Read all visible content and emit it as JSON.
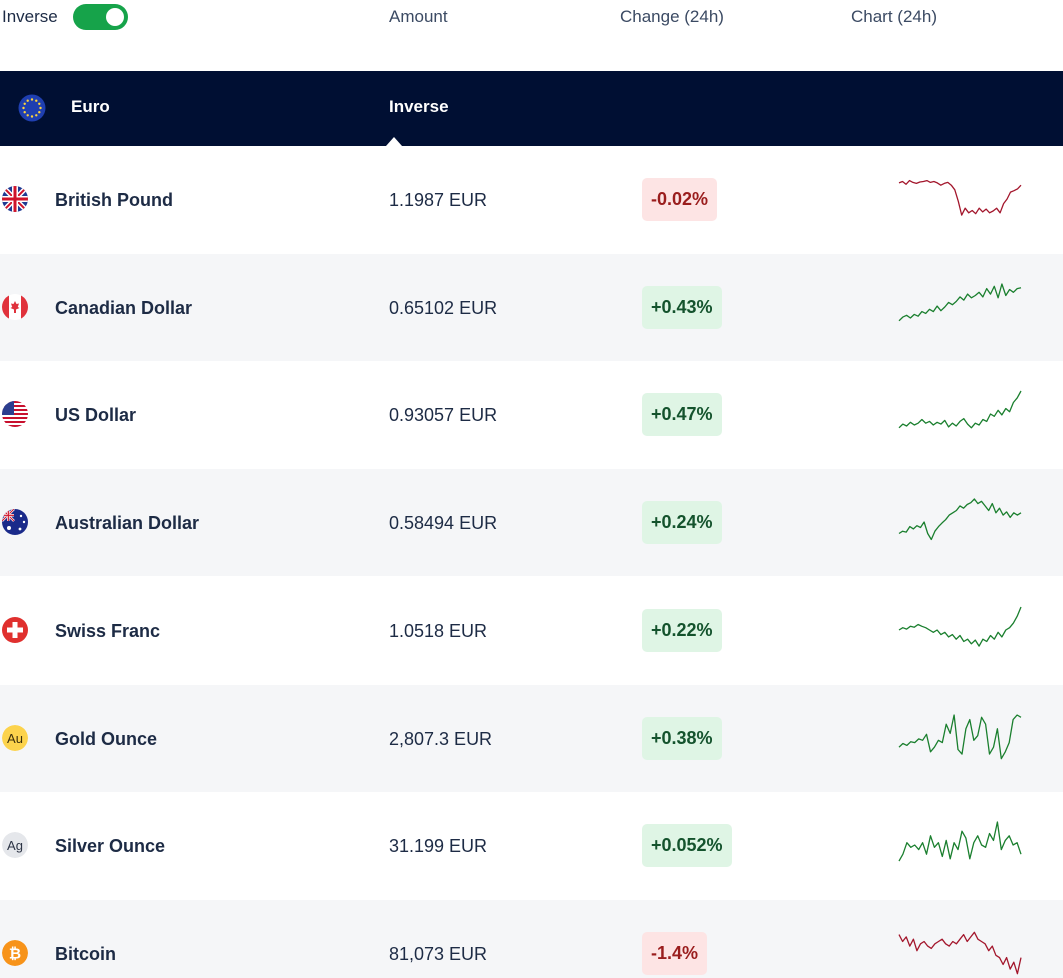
{
  "topbar": {
    "inverse_label": "Inverse",
    "inverse_on": true,
    "columns": {
      "amount": "Amount",
      "change": "Change (24h)",
      "chart": "Chart (24h)"
    }
  },
  "base": {
    "name": "Euro",
    "icon": "eu-flag-icon",
    "tab": "Inverse"
  },
  "colors": {
    "header": "#000f33",
    "toggle": "#16a34a",
    "up": "#1a7f2e",
    "down": "#a3162c"
  },
  "rows": [
    {
      "name": "British Pound",
      "icon": "uk-flag-icon",
      "amount": "1.1987 EUR",
      "change": "-0.02%",
      "direction": "down",
      "spark": [
        0.15,
        0.12,
        0.18,
        0.1,
        0.14,
        0.16,
        0.13,
        0.12,
        0.1,
        0.14,
        0.12,
        0.15,
        0.2,
        0.16,
        0.14,
        0.2,
        0.3,
        0.55,
        0.85,
        0.7,
        0.8,
        0.75,
        0.82,
        0.7,
        0.78,
        0.72,
        0.8,
        0.76,
        0.7,
        0.8,
        0.6,
        0.5,
        0.35,
        0.32,
        0.28,
        0.2
      ]
    },
    {
      "name": "Canadian Dollar",
      "icon": "canada-flag-icon",
      "amount": "0.65102 EUR",
      "change": "+0.43%",
      "direction": "up",
      "spark": [
        0.8,
        0.72,
        0.68,
        0.74,
        0.66,
        0.7,
        0.6,
        0.64,
        0.55,
        0.6,
        0.48,
        0.58,
        0.5,
        0.4,
        0.45,
        0.38,
        0.28,
        0.35,
        0.22,
        0.3,
        0.25,
        0.18,
        0.28,
        0.1,
        0.22,
        0.05,
        0.3,
        0.0,
        0.25,
        0.12,
        0.18,
        0.1,
        0.08
      ]
    },
    {
      "name": "US Dollar",
      "icon": "us-flag-icon",
      "amount": "0.93057 EUR",
      "change": "+0.47%",
      "direction": "up",
      "spark": [
        0.8,
        0.72,
        0.76,
        0.68,
        0.74,
        0.7,
        0.62,
        0.7,
        0.66,
        0.74,
        0.68,
        0.72,
        0.64,
        0.78,
        0.7,
        0.76,
        0.66,
        0.6,
        0.72,
        0.8,
        0.7,
        0.74,
        0.62,
        0.66,
        0.5,
        0.55,
        0.42,
        0.52,
        0.38,
        0.45,
        0.25,
        0.15,
        0.0
      ]
    },
    {
      "name": "Australian Dollar",
      "icon": "australia-flag-icon",
      "amount": "0.58494 EUR",
      "change": "+0.24%",
      "direction": "up",
      "spark": [
        0.75,
        0.7,
        0.72,
        0.6,
        0.65,
        0.58,
        0.62,
        0.5,
        0.75,
        0.88,
        0.7,
        0.6,
        0.52,
        0.45,
        0.35,
        0.3,
        0.25,
        0.15,
        0.2,
        0.12,
        0.08,
        0.0,
        0.1,
        0.05,
        0.15,
        0.25,
        0.1,
        0.3,
        0.2,
        0.35,
        0.28,
        0.4,
        0.3,
        0.35,
        0.3
      ]
    },
    {
      "name": "Swiss Franc",
      "icon": "swiss-flag-icon",
      "amount": "1.0518 EUR",
      "change": "+0.22%",
      "direction": "up",
      "spark": [
        0.5,
        0.45,
        0.48,
        0.42,
        0.44,
        0.38,
        0.42,
        0.45,
        0.5,
        0.55,
        0.5,
        0.6,
        0.55,
        0.65,
        0.6,
        0.7,
        0.62,
        0.75,
        0.7,
        0.8,
        0.72,
        0.85,
        0.7,
        0.75,
        0.62,
        0.7,
        0.55,
        0.65,
        0.5,
        0.45,
        0.35,
        0.2,
        0.0
      ]
    },
    {
      "name": "Gold Ounce",
      "icon": "gold-icon",
      "amount": "2,807.3 EUR",
      "change": "+0.38%",
      "direction": "up",
      "spark": [
        0.7,
        0.62,
        0.66,
        0.58,
        0.6,
        0.52,
        0.55,
        0.42,
        0.8,
        0.7,
        0.55,
        0.6,
        0.2,
        0.4,
        0.0,
        0.75,
        0.85,
        0.3,
        0.1,
        0.55,
        0.45,
        0.05,
        0.2,
        0.85,
        0.7,
        0.3,
        0.95,
        0.8,
        0.6,
        0.1,
        0.0,
        0.05
      ]
    },
    {
      "name": "Silver Ounce",
      "icon": "silver-icon",
      "amount": "31.199 EUR",
      "change": "+0.052%",
      "direction": "up",
      "spark": [
        0.85,
        0.7,
        0.45,
        0.55,
        0.5,
        0.6,
        0.45,
        0.7,
        0.3,
        0.55,
        0.45,
        0.75,
        0.4,
        0.8,
        0.45,
        0.6,
        0.2,
        0.35,
        0.8,
        0.45,
        0.3,
        0.5,
        0.55,
        0.25,
        0.4,
        0.0,
        0.6,
        0.4,
        0.3,
        0.5,
        0.45,
        0.7
      ]
    },
    {
      "name": "Bitcoin",
      "icon": "bitcoin-icon",
      "amount": "81,073 EUR",
      "change": "-1.4%",
      "direction": "down",
      "spark": [
        0.1,
        0.25,
        0.15,
        0.35,
        0.2,
        0.45,
        0.3,
        0.25,
        0.35,
        0.4,
        0.3,
        0.25,
        0.2,
        0.3,
        0.35,
        0.25,
        0.3,
        0.2,
        0.1,
        0.25,
        0.15,
        0.05,
        0.2,
        0.25,
        0.3,
        0.45,
        0.35,
        0.55,
        0.6,
        0.75,
        0.6,
        0.85,
        0.7,
        0.95,
        0.6
      ]
    }
  ]
}
